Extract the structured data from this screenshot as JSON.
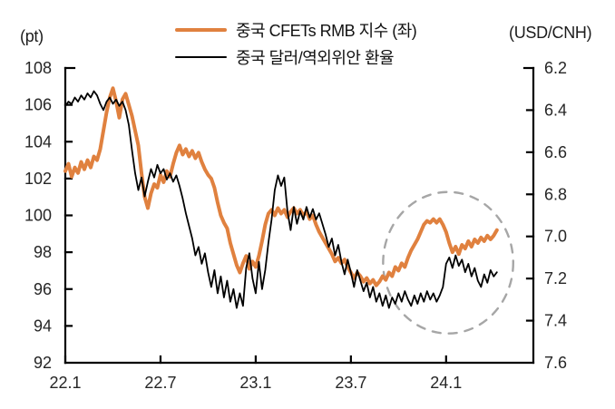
{
  "legend": {
    "items": [
      {
        "label": "중국 CFETs RMB 지수 (좌)",
        "color": "#E0813F",
        "thickness": 4
      },
      {
        "label": "중국 달러/역외위안 환율",
        "color": "#000000",
        "thickness": 2
      }
    ]
  },
  "chart_data": {
    "type": "line",
    "title": "",
    "grid": false,
    "legend_position": "top-center",
    "x_axis": {
      "tick_labels": [
        "22.1",
        "22.7",
        "23.1",
        "23.7",
        "24.1"
      ],
      "tick_months": [
        0,
        6,
        12,
        18,
        24
      ],
      "range_months": [
        0,
        29.5
      ],
      "note": "months measured from 2022.1"
    },
    "y_left": {
      "label": "(pt)",
      "range": [
        92,
        108
      ],
      "ticks": [
        108,
        106,
        104,
        102,
        100,
        98,
        96,
        94,
        92
      ],
      "tick_labels": [
        "108",
        "106",
        "104",
        "102",
        "100",
        "98",
        "96",
        "94",
        "92"
      ]
    },
    "y_right": {
      "label": "(USD/CNH)",
      "range": [
        6.2,
        7.6
      ],
      "inverted_top_is_low": true,
      "ticks": [
        6.2,
        6.4,
        6.6,
        6.8,
        7.0,
        7.2,
        7.4,
        7.6
      ],
      "tick_labels": [
        "6.2",
        "6.4",
        "6.6",
        "6.8",
        "7.0",
        "7.2",
        "7.4",
        "7.6"
      ]
    },
    "series": [
      {
        "name": "중국 CFETs RMB 지수 (좌)",
        "axis": "left",
        "color": "#E0813F",
        "width": 4,
        "points": [
          [
            0,
            102.4
          ],
          [
            0.2,
            102.8
          ],
          [
            0.4,
            102.1
          ],
          [
            0.6,
            102.6
          ],
          [
            0.8,
            102.3
          ],
          [
            1.0,
            102.9
          ],
          [
            1.2,
            102.5
          ],
          [
            1.4,
            103.0
          ],
          [
            1.6,
            102.6
          ],
          [
            1.8,
            103.2
          ],
          [
            2.0,
            103.0
          ],
          [
            2.2,
            103.6
          ],
          [
            2.4,
            104.6
          ],
          [
            2.6,
            105.6
          ],
          [
            2.8,
            106.4
          ],
          [
            3.0,
            106.9
          ],
          [
            3.2,
            106.2
          ],
          [
            3.4,
            105.3
          ],
          [
            3.6,
            106.3
          ],
          [
            3.8,
            106.6
          ],
          [
            4.0,
            106.0
          ],
          [
            4.2,
            105.4
          ],
          [
            4.4,
            104.6
          ],
          [
            4.6,
            103.8
          ],
          [
            4.8,
            102.3
          ],
          [
            5.0,
            101.0
          ],
          [
            5.2,
            100.4
          ],
          [
            5.4,
            101.2
          ],
          [
            5.6,
            101.7
          ],
          [
            5.8,
            101.5
          ],
          [
            6.0,
            102.2
          ],
          [
            6.2,
            101.8
          ],
          [
            6.4,
            102.4
          ],
          [
            6.6,
            102.1
          ],
          [
            6.8,
            102.8
          ],
          [
            7.0,
            103.4
          ],
          [
            7.2,
            103.8
          ],
          [
            7.4,
            103.3
          ],
          [
            7.6,
            103.6
          ],
          [
            7.8,
            103.2
          ],
          [
            8.0,
            103.5
          ],
          [
            8.2,
            103.1
          ],
          [
            8.4,
            103.4
          ],
          [
            8.6,
            102.9
          ],
          [
            8.8,
            102.5
          ],
          [
            9.0,
            102.2
          ],
          [
            9.2,
            102.0
          ],
          [
            9.4,
            101.5
          ],
          [
            9.6,
            100.7
          ],
          [
            9.8,
            100.0
          ],
          [
            10.0,
            99.6
          ],
          [
            10.2,
            99.3
          ],
          [
            10.4,
            98.5
          ],
          [
            10.6,
            97.9
          ],
          [
            10.8,
            97.3
          ],
          [
            11.0,
            96.9
          ],
          [
            11.2,
            97.4
          ],
          [
            11.4,
            97.8
          ],
          [
            11.6,
            97.1
          ],
          [
            11.8,
            97.5
          ],
          [
            12.0,
            97.2
          ],
          [
            12.2,
            97.8
          ],
          [
            12.4,
            98.6
          ],
          [
            12.6,
            99.5
          ],
          [
            12.8,
            100.1
          ],
          [
            13.0,
            100.3
          ],
          [
            13.2,
            100.0
          ],
          [
            13.4,
            100.4
          ],
          [
            13.6,
            100.1
          ],
          [
            13.8,
            100.3
          ],
          [
            14.0,
            99.9
          ],
          [
            14.2,
            100.2
          ],
          [
            14.4,
            100.4
          ],
          [
            14.6,
            100.1
          ],
          [
            14.8,
            100.3
          ],
          [
            15.0,
            100.0
          ],
          [
            15.2,
            100.2
          ],
          [
            15.4,
            99.8
          ],
          [
            15.6,
            100.0
          ],
          [
            15.8,
            99.5
          ],
          [
            16.0,
            99.1
          ],
          [
            16.2,
            98.8
          ],
          [
            16.4,
            98.5
          ],
          [
            16.6,
            98.2
          ],
          [
            16.8,
            97.9
          ],
          [
            17.0,
            97.5
          ],
          [
            17.2,
            97.7
          ],
          [
            17.4,
            97.4
          ],
          [
            17.6,
            97.6
          ],
          [
            17.8,
            97.2
          ],
          [
            18.0,
            96.9
          ],
          [
            18.2,
            96.6
          ],
          [
            18.4,
            96.9
          ],
          [
            18.6,
            96.7
          ],
          [
            18.8,
            96.4
          ],
          [
            19.0,
            96.6
          ],
          [
            19.2,
            96.3
          ],
          [
            19.4,
            96.5
          ],
          [
            19.6,
            96.2
          ],
          [
            19.8,
            96.4
          ],
          [
            20.0,
            96.7
          ],
          [
            20.2,
            96.5
          ],
          [
            20.4,
            96.9
          ],
          [
            20.6,
            96.7
          ],
          [
            20.8,
            97.2
          ],
          [
            21.0,
            97.0
          ],
          [
            21.2,
            97.4
          ],
          [
            21.4,
            97.2
          ],
          [
            21.6,
            97.7
          ],
          [
            21.8,
            98.1
          ],
          [
            22.0,
            98.4
          ],
          [
            22.2,
            98.7
          ],
          [
            22.4,
            99.1
          ],
          [
            22.6,
            99.5
          ],
          [
            22.8,
            99.7
          ],
          [
            23.0,
            99.6
          ],
          [
            23.2,
            99.8
          ],
          [
            23.4,
            99.6
          ],
          [
            23.6,
            99.8
          ],
          [
            23.8,
            99.5
          ],
          [
            24.0,
            99.1
          ],
          [
            24.2,
            98.5
          ],
          [
            24.4,
            98.0
          ],
          [
            24.6,
            98.3
          ],
          [
            24.8,
            97.9
          ],
          [
            25.0,
            98.4
          ],
          [
            25.2,
            98.2
          ],
          [
            25.4,
            98.6
          ],
          [
            25.6,
            98.3
          ],
          [
            25.8,
            98.7
          ],
          [
            26.0,
            98.5
          ],
          [
            26.2,
            98.8
          ],
          [
            26.4,
            98.6
          ],
          [
            26.6,
            98.9
          ],
          [
            26.8,
            98.7
          ],
          [
            27.0,
            98.9
          ],
          [
            27.2,
            99.2
          ]
        ]
      },
      {
        "name": "중국 달러/역외위안 환율",
        "axis": "right",
        "color": "#000000",
        "width": 1.8,
        "points": [
          [
            0,
            6.38
          ],
          [
            0.2,
            6.36
          ],
          [
            0.4,
            6.37
          ],
          [
            0.6,
            6.34
          ],
          [
            0.8,
            6.36
          ],
          [
            1.0,
            6.33
          ],
          [
            1.2,
            6.35
          ],
          [
            1.4,
            6.32
          ],
          [
            1.6,
            6.34
          ],
          [
            1.8,
            6.31
          ],
          [
            2.0,
            6.33
          ],
          [
            2.2,
            6.37
          ],
          [
            2.4,
            6.4
          ],
          [
            2.6,
            6.36
          ],
          [
            2.8,
            6.34
          ],
          [
            3.0,
            6.37
          ],
          [
            3.2,
            6.35
          ],
          [
            3.4,
            6.38
          ],
          [
            3.6,
            6.36
          ],
          [
            3.8,
            6.4
          ],
          [
            4.0,
            6.47
          ],
          [
            4.2,
            6.59
          ],
          [
            4.4,
            6.7
          ],
          [
            4.6,
            6.78
          ],
          [
            4.8,
            6.72
          ],
          [
            5.0,
            6.81
          ],
          [
            5.2,
            6.74
          ],
          [
            5.4,
            6.68
          ],
          [
            5.6,
            6.72
          ],
          [
            5.8,
            6.66
          ],
          [
            6.0,
            6.7
          ],
          [
            6.2,
            6.68
          ],
          [
            6.4,
            6.73
          ],
          [
            6.6,
            6.7
          ],
          [
            6.8,
            6.74
          ],
          [
            7.0,
            6.71
          ],
          [
            7.2,
            6.76
          ],
          [
            7.4,
            6.82
          ],
          [
            7.6,
            6.89
          ],
          [
            7.8,
            6.95
          ],
          [
            8.0,
            7.01
          ],
          [
            8.2,
            7.09
          ],
          [
            8.4,
            7.05
          ],
          [
            8.6,
            7.13
          ],
          [
            8.8,
            7.08
          ],
          [
            9.0,
            7.17
          ],
          [
            9.2,
            7.24
          ],
          [
            9.4,
            7.16
          ],
          [
            9.6,
            7.27
          ],
          [
            9.8,
            7.19
          ],
          [
            10.0,
            7.29
          ],
          [
            10.2,
            7.21
          ],
          [
            10.4,
            7.31
          ],
          [
            10.6,
            7.25
          ],
          [
            10.8,
            7.34
          ],
          [
            11.0,
            7.27
          ],
          [
            11.2,
            7.33
          ],
          [
            11.4,
            7.15
          ],
          [
            11.6,
            7.08
          ],
          [
            11.8,
            7.2
          ],
          [
            12.0,
            7.27
          ],
          [
            12.2,
            7.12
          ],
          [
            12.4,
            7.25
          ],
          [
            12.6,
            7.16
          ],
          [
            12.8,
            7.03
          ],
          [
            13.0,
            6.92
          ],
          [
            13.2,
            6.78
          ],
          [
            13.4,
            6.71
          ],
          [
            13.6,
            6.76
          ],
          [
            13.8,
            6.72
          ],
          [
            14.0,
            6.88
          ],
          [
            14.2,
            6.97
          ],
          [
            14.4,
            6.86
          ],
          [
            14.6,
            6.94
          ],
          [
            14.8,
            6.88
          ],
          [
            15.0,
            6.92
          ],
          [
            15.2,
            6.86
          ],
          [
            15.4,
            6.91
          ],
          [
            15.6,
            6.87
          ],
          [
            15.8,
            6.92
          ],
          [
            16.0,
            6.89
          ],
          [
            16.2,
            6.94
          ],
          [
            16.4,
            6.99
          ],
          [
            16.6,
            7.05
          ],
          [
            16.8,
            7.01
          ],
          [
            17.0,
            7.09
          ],
          [
            17.2,
            7.04
          ],
          [
            17.4,
            7.12
          ],
          [
            17.6,
            7.18
          ],
          [
            17.8,
            7.11
          ],
          [
            18.0,
            7.17
          ],
          [
            18.2,
            7.24
          ],
          [
            18.4,
            7.16
          ],
          [
            18.6,
            7.21
          ],
          [
            18.8,
            7.26
          ],
          [
            19.0,
            7.22
          ],
          [
            19.2,
            7.29
          ],
          [
            19.4,
            7.24
          ],
          [
            19.6,
            7.31
          ],
          [
            19.8,
            7.27
          ],
          [
            20.0,
            7.33
          ],
          [
            20.2,
            7.28
          ],
          [
            20.4,
            7.34
          ],
          [
            20.6,
            7.29
          ],
          [
            20.8,
            7.32
          ],
          [
            21.0,
            7.27
          ],
          [
            21.2,
            7.31
          ],
          [
            21.4,
            7.26
          ],
          [
            21.6,
            7.3
          ],
          [
            21.8,
            7.33
          ],
          [
            22.0,
            7.28
          ],
          [
            22.2,
            7.32
          ],
          [
            22.4,
            7.27
          ],
          [
            22.6,
            7.31
          ],
          [
            22.8,
            7.26
          ],
          [
            23.0,
            7.3
          ],
          [
            23.2,
            7.27
          ],
          [
            23.4,
            7.31
          ],
          [
            23.6,
            7.28
          ],
          [
            23.8,
            7.24
          ],
          [
            24.0,
            7.13
          ],
          [
            24.2,
            7.1
          ],
          [
            24.4,
            7.15
          ],
          [
            24.6,
            7.09
          ],
          [
            24.8,
            7.14
          ],
          [
            25.0,
            7.11
          ],
          [
            25.2,
            7.17
          ],
          [
            25.4,
            7.13
          ],
          [
            25.6,
            7.19
          ],
          [
            25.8,
            7.15
          ],
          [
            26.0,
            7.21
          ],
          [
            26.2,
            7.24
          ],
          [
            26.4,
            7.18
          ],
          [
            26.6,
            7.22
          ],
          [
            26.8,
            7.16
          ],
          [
            27.0,
            7.19
          ],
          [
            27.2,
            7.17
          ]
        ]
      }
    ],
    "annotation_ellipse": {
      "center_month": 24.13,
      "rx_months": 4.1,
      "center_value_right": 7.125,
      "ry_value_right": 0.336,
      "color": "#A6A6A6",
      "dash": "9 9",
      "width": 2.4
    },
    "style": {
      "axis_color": "#000000",
      "axis_width": 2.2,
      "tick_length": 7,
      "tick_label_color": "#262626",
      "tick_font_size": 18
    }
  }
}
